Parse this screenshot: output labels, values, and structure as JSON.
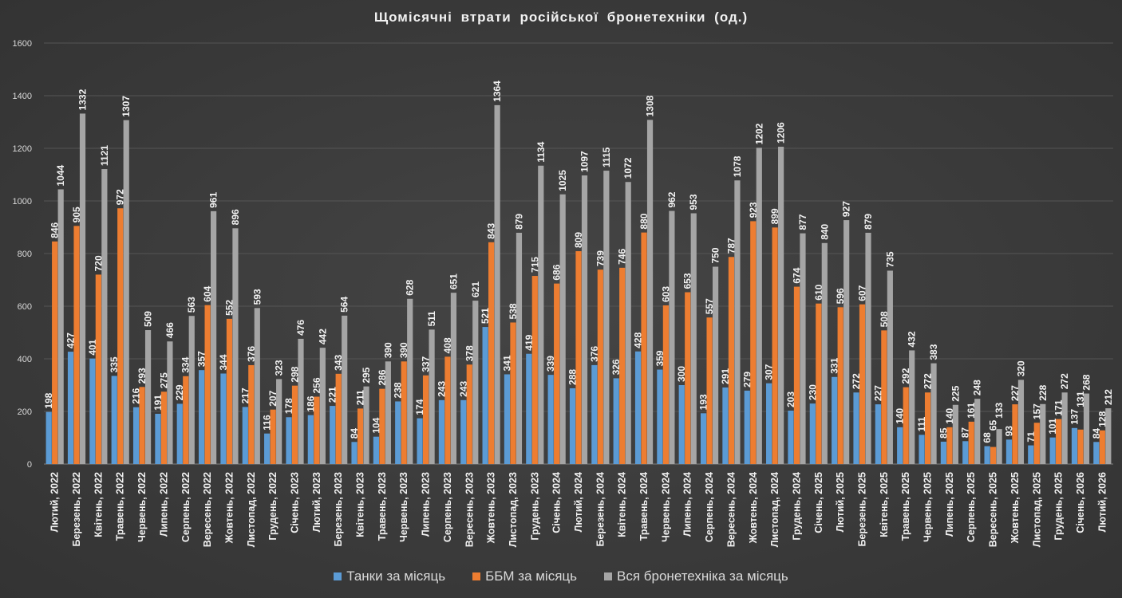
{
  "chart_data": {
    "type": "bar",
    "title": "Щомісячні втрати російської бронетехніки (од.)",
    "xlabel": "",
    "ylabel": "",
    "ylim": [
      0,
      1600
    ],
    "yticks": [
      0,
      200,
      400,
      600,
      800,
      1000,
      1200,
      1400,
      1600
    ],
    "grid": true,
    "legend_position": "bottom",
    "categories": [
      "Лютий, 2022",
      "Березень, 2022",
      "Квітень, 2022",
      "Травень, 2022",
      "Червень, 2022",
      "Липень, 2022",
      "Серпень, 2022",
      "Вересень, 2022",
      "Жовтень, 2022",
      "Листопад, 2022",
      "Грудень, 2022",
      "Січень, 2023",
      "Лютий, 2023",
      "Березень, 2023",
      "Квітень, 2023",
      "Травень, 2023",
      "Червень, 2023",
      "Липень, 2023",
      "Серпень, 2023",
      "Вересень, 2023",
      "Жовтень, 2023",
      "Листопад, 2023",
      "Грудень, 2023",
      "Січень, 2024",
      "Лютий, 2024",
      "Березень, 2024",
      "Квітень, 2024",
      "Травень, 2024",
      "Червень, 2024",
      "Липень, 2024",
      "Серпень, 2024",
      "Вересень, 2024",
      "Жовтень, 2024",
      "Листопад, 2024",
      "Грудень, 2024",
      "Січень, 2025",
      "Лютий, 2025",
      "Березень, 2025",
      "Квітень, 2025",
      "Травень, 2025",
      "Червень, 2025",
      "Липень, 2025",
      "Серпень, 2025",
      "Вересень, 2025",
      "Жовтень, 2025",
      "Листопад, 2025",
      "Грудень, 2025",
      "Січень, 2026",
      "Лютий, 2026"
    ],
    "series": [
      {
        "name": "Танки за місяць",
        "color": "#5b9bd5",
        "values": [
          198,
          427,
          401,
          335,
          216,
          191,
          229,
          357,
          344,
          217,
          116,
          178,
          186,
          221,
          84,
          104,
          238,
          174,
          243,
          243,
          521,
          341,
          419,
          339,
          288,
          376,
          326,
          428,
          359,
          300,
          193,
          291,
          279,
          307,
          203,
          230,
          331,
          272,
          227,
          140,
          111,
          85,
          87,
          68,
          93,
          71,
          101,
          137,
          84
        ]
      },
      {
        "name": "ББМ за місяць",
        "color": "#ed7d31",
        "values": [
          846,
          905,
          720,
          972,
          293,
          275,
          334,
          604,
          552,
          376,
          207,
          298,
          256,
          343,
          211,
          286,
          390,
          337,
          408,
          378,
          843,
          538,
          715,
          686,
          809,
          739,
          746,
          880,
          603,
          653,
          557,
          787,
          923,
          899,
          674,
          610,
          596,
          607,
          508,
          292,
          272,
          140,
          161,
          65,
          227,
          157,
          171,
          131,
          128
        ]
      },
      {
        "name": "Вся бронетехніка за місяць",
        "color": "#a5a5a5",
        "values": [
          1044,
          1332,
          1121,
          1307,
          509,
          466,
          563,
          961,
          896,
          593,
          323,
          476,
          442,
          564,
          295,
          390,
          628,
          511,
          651,
          621,
          1364,
          879,
          1134,
          1025,
          1097,
          1115,
          1072,
          1308,
          962,
          953,
          750,
          1078,
          1202,
          1206,
          877,
          840,
          927,
          879,
          735,
          432,
          383,
          225,
          248,
          133,
          320,
          228,
          272,
          268,
          212
        ]
      }
    ]
  }
}
